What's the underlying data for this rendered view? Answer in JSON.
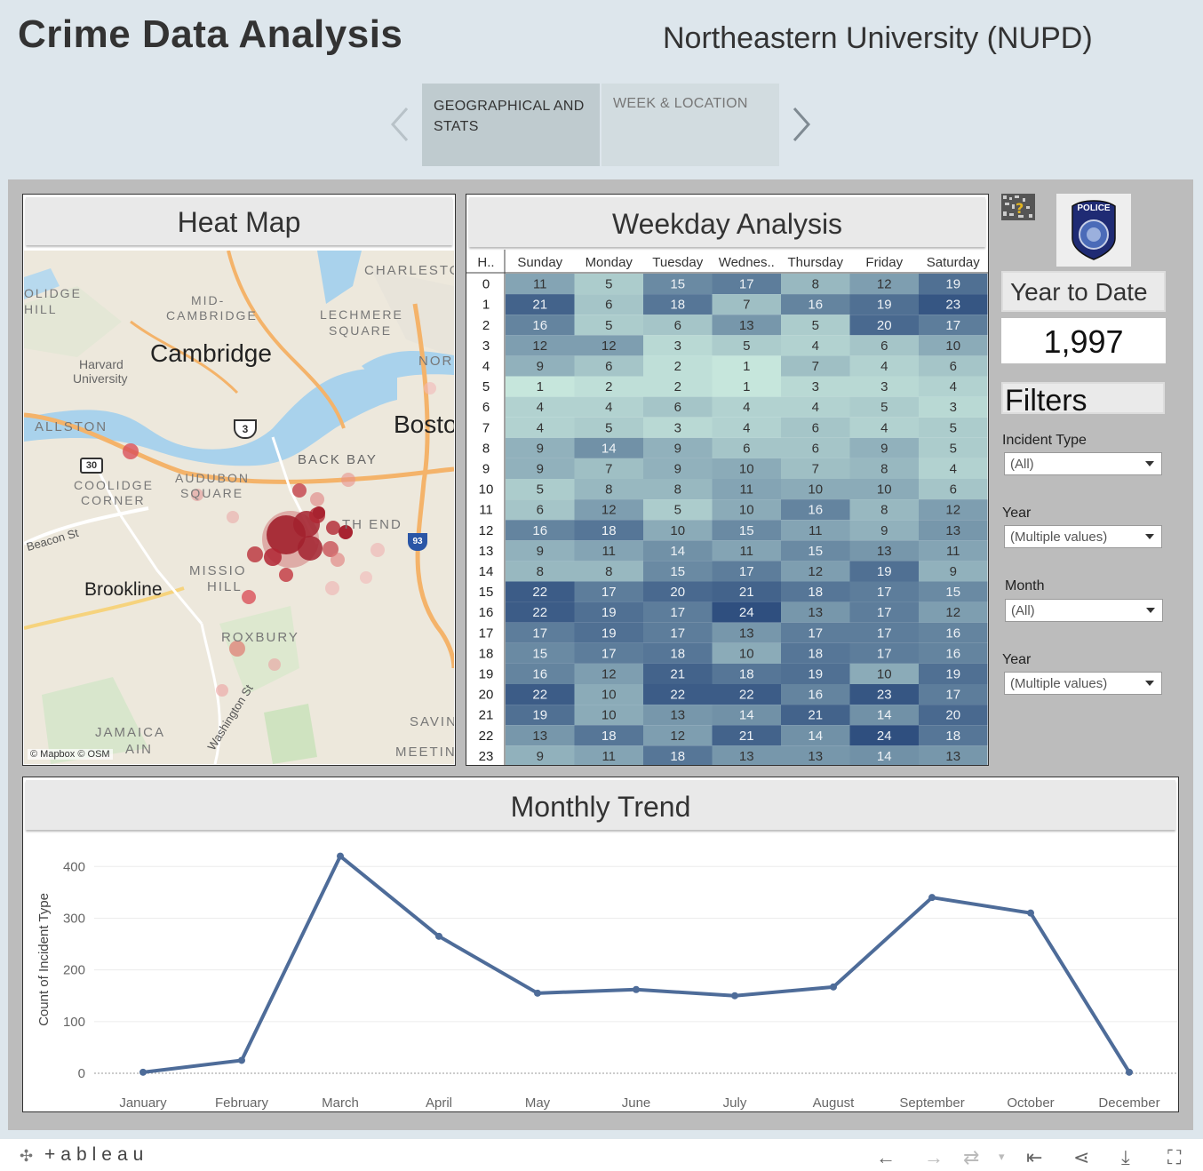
{
  "header": {
    "title": "Crime Data Analysis",
    "org": "Northeastern University (NUPD)"
  },
  "tabs": [
    {
      "label": "GEOGRAPHICAL AND STATS",
      "active": true
    },
    {
      "label": "WEEK & LOCATION",
      "active": false
    }
  ],
  "heatmap_panel": {
    "title": "Heat Map",
    "attribution": "© Mapbox  © OSM",
    "labels": [
      "CHARLESTO",
      "OLIDGE",
      "HILL",
      "MID-",
      "CAMBRIDGE",
      "LECHMERE",
      "SQUARE",
      "Cambridge",
      "Harvard",
      "University",
      "NOR",
      "ALLSTON",
      "Bosto",
      "BACK BAY",
      "COOLIDGE",
      "CORNER",
      "AUDUBON",
      "SQUARE",
      "TH END",
      "Beacon St",
      "MISSIO",
      "HILL",
      "Brookline",
      "ROXBURY",
      "Washington St",
      "JAMAICA",
      "AIN",
      "SAVIN",
      "MEETIN"
    ],
    "shields": [
      "3",
      "30",
      "93"
    ]
  },
  "weekday_panel": {
    "title": "Weekday Analysis"
  },
  "chart_data": [
    {
      "type": "heatmap",
      "row_header": "H..",
      "columns": [
        "Sunday",
        "Monday",
        "Tuesday",
        "Wednes..",
        "Thursday",
        "Friday",
        "Saturday"
      ],
      "rows": [
        "0",
        "1",
        "2",
        "3",
        "4",
        "5",
        "6",
        "7",
        "8",
        "9",
        "10",
        "11",
        "12",
        "13",
        "14",
        "15",
        "16",
        "17",
        "18",
        "19",
        "20",
        "21",
        "22",
        "23"
      ],
      "values": [
        [
          11,
          5,
          15,
          17,
          8,
          12,
          19
        ],
        [
          21,
          6,
          18,
          7,
          16,
          19,
          23
        ],
        [
          16,
          5,
          6,
          13,
          5,
          20,
          17
        ],
        [
          12,
          12,
          3,
          5,
          4,
          6,
          10
        ],
        [
          9,
          6,
          2,
          1,
          7,
          4,
          6
        ],
        [
          1,
          2,
          2,
          1,
          3,
          3,
          4
        ],
        [
          4,
          4,
          6,
          4,
          4,
          5,
          3
        ],
        [
          4,
          5,
          3,
          4,
          6,
          4,
          5
        ],
        [
          9,
          14,
          9,
          6,
          6,
          9,
          5
        ],
        [
          9,
          7,
          9,
          10,
          7,
          8,
          4
        ],
        [
          5,
          8,
          8,
          11,
          10,
          10,
          6
        ],
        [
          6,
          12,
          5,
          10,
          16,
          8,
          12
        ],
        [
          16,
          18,
          10,
          15,
          11,
          9,
          13
        ],
        [
          9,
          11,
          14,
          11,
          15,
          13,
          11
        ],
        [
          8,
          8,
          15,
          17,
          12,
          19,
          9
        ],
        [
          22,
          17,
          20,
          21,
          18,
          17,
          15
        ],
        [
          22,
          19,
          17,
          24,
          13,
          17,
          12
        ],
        [
          17,
          19,
          17,
          13,
          17,
          17,
          16
        ],
        [
          15,
          17,
          18,
          10,
          18,
          17,
          16
        ],
        [
          16,
          12,
          21,
          18,
          19,
          10,
          19
        ],
        [
          22,
          10,
          22,
          22,
          16,
          23,
          17
        ],
        [
          19,
          10,
          13,
          14,
          21,
          14,
          20
        ],
        [
          13,
          18,
          12,
          21,
          14,
          24,
          18
        ],
        [
          9,
          11,
          18,
          13,
          13,
          14,
          13
        ]
      ],
      "colors": {
        "low": "#c6e6dc",
        "high": "#2f4f7f"
      }
    },
    {
      "type": "line",
      "title": "Monthly Trend",
      "ylabel": "Count of Incident Type",
      "xlabel": "",
      "categories": [
        "January",
        "February",
        "March",
        "April",
        "May",
        "June",
        "July",
        "August",
        "September",
        "October",
        "December"
      ],
      "values": [
        2,
        25,
        420,
        265,
        155,
        162,
        150,
        167,
        340,
        310,
        2
      ],
      "ylim": [
        0,
        440
      ],
      "yticks": [
        0,
        100,
        200,
        300,
        400
      ],
      "color": "#4e6c99",
      "grid": true
    }
  ],
  "sidebar": {
    "ytd_label": "Year to Date",
    "ytd_value": "1,997",
    "filters_label": "Filters",
    "badge_text": "POLICE",
    "filters": [
      {
        "label": "Incident Type",
        "value": "(All)"
      },
      {
        "label": "Year",
        "value": "(Multiple values)"
      },
      {
        "label": "Month",
        "value": "(All)"
      },
      {
        "label": "Year",
        "value": "(Multiple values)"
      }
    ]
  },
  "footer": {
    "brand": "+ableau"
  }
}
